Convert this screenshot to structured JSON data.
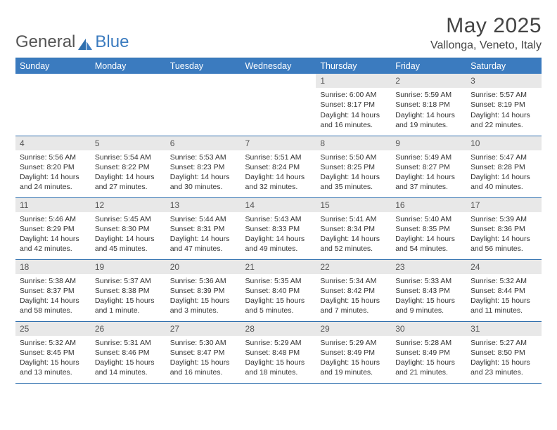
{
  "brand": {
    "part1": "General",
    "part2": "Blue"
  },
  "title": "May 2025",
  "location": "Vallonga, Veneto, Italy",
  "weekdays": [
    "Sunday",
    "Monday",
    "Tuesday",
    "Wednesday",
    "Thursday",
    "Friday",
    "Saturday"
  ],
  "colors": {
    "header_bg": "#3b7bbf",
    "header_text": "#ffffff",
    "daynum_bg": "#e8e8e8",
    "border": "#2f6fae",
    "text": "#333333"
  },
  "typography": {
    "title_fontsize": 30,
    "location_fontsize": 16,
    "weekday_fontsize": 12.5,
    "body_fontsize": 10.5
  },
  "rows": [
    [
      {
        "n": "",
        "sr": "",
        "ss": "",
        "dl": ""
      },
      {
        "n": "",
        "sr": "",
        "ss": "",
        "dl": ""
      },
      {
        "n": "",
        "sr": "",
        "ss": "",
        "dl": ""
      },
      {
        "n": "",
        "sr": "",
        "ss": "",
        "dl": ""
      },
      {
        "n": "1",
        "sr": "Sunrise: 6:00 AM",
        "ss": "Sunset: 8:17 PM",
        "dl": "Daylight: 14 hours and 16 minutes."
      },
      {
        "n": "2",
        "sr": "Sunrise: 5:59 AM",
        "ss": "Sunset: 8:18 PM",
        "dl": "Daylight: 14 hours and 19 minutes."
      },
      {
        "n": "3",
        "sr": "Sunrise: 5:57 AM",
        "ss": "Sunset: 8:19 PM",
        "dl": "Daylight: 14 hours and 22 minutes."
      }
    ],
    [
      {
        "n": "4",
        "sr": "Sunrise: 5:56 AM",
        "ss": "Sunset: 8:20 PM",
        "dl": "Daylight: 14 hours and 24 minutes."
      },
      {
        "n": "5",
        "sr": "Sunrise: 5:54 AM",
        "ss": "Sunset: 8:22 PM",
        "dl": "Daylight: 14 hours and 27 minutes."
      },
      {
        "n": "6",
        "sr": "Sunrise: 5:53 AM",
        "ss": "Sunset: 8:23 PM",
        "dl": "Daylight: 14 hours and 30 minutes."
      },
      {
        "n": "7",
        "sr": "Sunrise: 5:51 AM",
        "ss": "Sunset: 8:24 PM",
        "dl": "Daylight: 14 hours and 32 minutes."
      },
      {
        "n": "8",
        "sr": "Sunrise: 5:50 AM",
        "ss": "Sunset: 8:25 PM",
        "dl": "Daylight: 14 hours and 35 minutes."
      },
      {
        "n": "9",
        "sr": "Sunrise: 5:49 AM",
        "ss": "Sunset: 8:27 PM",
        "dl": "Daylight: 14 hours and 37 minutes."
      },
      {
        "n": "10",
        "sr": "Sunrise: 5:47 AM",
        "ss": "Sunset: 8:28 PM",
        "dl": "Daylight: 14 hours and 40 minutes."
      }
    ],
    [
      {
        "n": "11",
        "sr": "Sunrise: 5:46 AM",
        "ss": "Sunset: 8:29 PM",
        "dl": "Daylight: 14 hours and 42 minutes."
      },
      {
        "n": "12",
        "sr": "Sunrise: 5:45 AM",
        "ss": "Sunset: 8:30 PM",
        "dl": "Daylight: 14 hours and 45 minutes."
      },
      {
        "n": "13",
        "sr": "Sunrise: 5:44 AM",
        "ss": "Sunset: 8:31 PM",
        "dl": "Daylight: 14 hours and 47 minutes."
      },
      {
        "n": "14",
        "sr": "Sunrise: 5:43 AM",
        "ss": "Sunset: 8:33 PM",
        "dl": "Daylight: 14 hours and 49 minutes."
      },
      {
        "n": "15",
        "sr": "Sunrise: 5:41 AM",
        "ss": "Sunset: 8:34 PM",
        "dl": "Daylight: 14 hours and 52 minutes."
      },
      {
        "n": "16",
        "sr": "Sunrise: 5:40 AM",
        "ss": "Sunset: 8:35 PM",
        "dl": "Daylight: 14 hours and 54 minutes."
      },
      {
        "n": "17",
        "sr": "Sunrise: 5:39 AM",
        "ss": "Sunset: 8:36 PM",
        "dl": "Daylight: 14 hours and 56 minutes."
      }
    ],
    [
      {
        "n": "18",
        "sr": "Sunrise: 5:38 AM",
        "ss": "Sunset: 8:37 PM",
        "dl": "Daylight: 14 hours and 58 minutes."
      },
      {
        "n": "19",
        "sr": "Sunrise: 5:37 AM",
        "ss": "Sunset: 8:38 PM",
        "dl": "Daylight: 15 hours and 1 minute."
      },
      {
        "n": "20",
        "sr": "Sunrise: 5:36 AM",
        "ss": "Sunset: 8:39 PM",
        "dl": "Daylight: 15 hours and 3 minutes."
      },
      {
        "n": "21",
        "sr": "Sunrise: 5:35 AM",
        "ss": "Sunset: 8:40 PM",
        "dl": "Daylight: 15 hours and 5 minutes."
      },
      {
        "n": "22",
        "sr": "Sunrise: 5:34 AM",
        "ss": "Sunset: 8:42 PM",
        "dl": "Daylight: 15 hours and 7 minutes."
      },
      {
        "n": "23",
        "sr": "Sunrise: 5:33 AM",
        "ss": "Sunset: 8:43 PM",
        "dl": "Daylight: 15 hours and 9 minutes."
      },
      {
        "n": "24",
        "sr": "Sunrise: 5:32 AM",
        "ss": "Sunset: 8:44 PM",
        "dl": "Daylight: 15 hours and 11 minutes."
      }
    ],
    [
      {
        "n": "25",
        "sr": "Sunrise: 5:32 AM",
        "ss": "Sunset: 8:45 PM",
        "dl": "Daylight: 15 hours and 13 minutes."
      },
      {
        "n": "26",
        "sr": "Sunrise: 5:31 AM",
        "ss": "Sunset: 8:46 PM",
        "dl": "Daylight: 15 hours and 14 minutes."
      },
      {
        "n": "27",
        "sr": "Sunrise: 5:30 AM",
        "ss": "Sunset: 8:47 PM",
        "dl": "Daylight: 15 hours and 16 minutes."
      },
      {
        "n": "28",
        "sr": "Sunrise: 5:29 AM",
        "ss": "Sunset: 8:48 PM",
        "dl": "Daylight: 15 hours and 18 minutes."
      },
      {
        "n": "29",
        "sr": "Sunrise: 5:29 AM",
        "ss": "Sunset: 8:49 PM",
        "dl": "Daylight: 15 hours and 19 minutes."
      },
      {
        "n": "30",
        "sr": "Sunrise: 5:28 AM",
        "ss": "Sunset: 8:49 PM",
        "dl": "Daylight: 15 hours and 21 minutes."
      },
      {
        "n": "31",
        "sr": "Sunrise: 5:27 AM",
        "ss": "Sunset: 8:50 PM",
        "dl": "Daylight: 15 hours and 23 minutes."
      }
    ]
  ]
}
